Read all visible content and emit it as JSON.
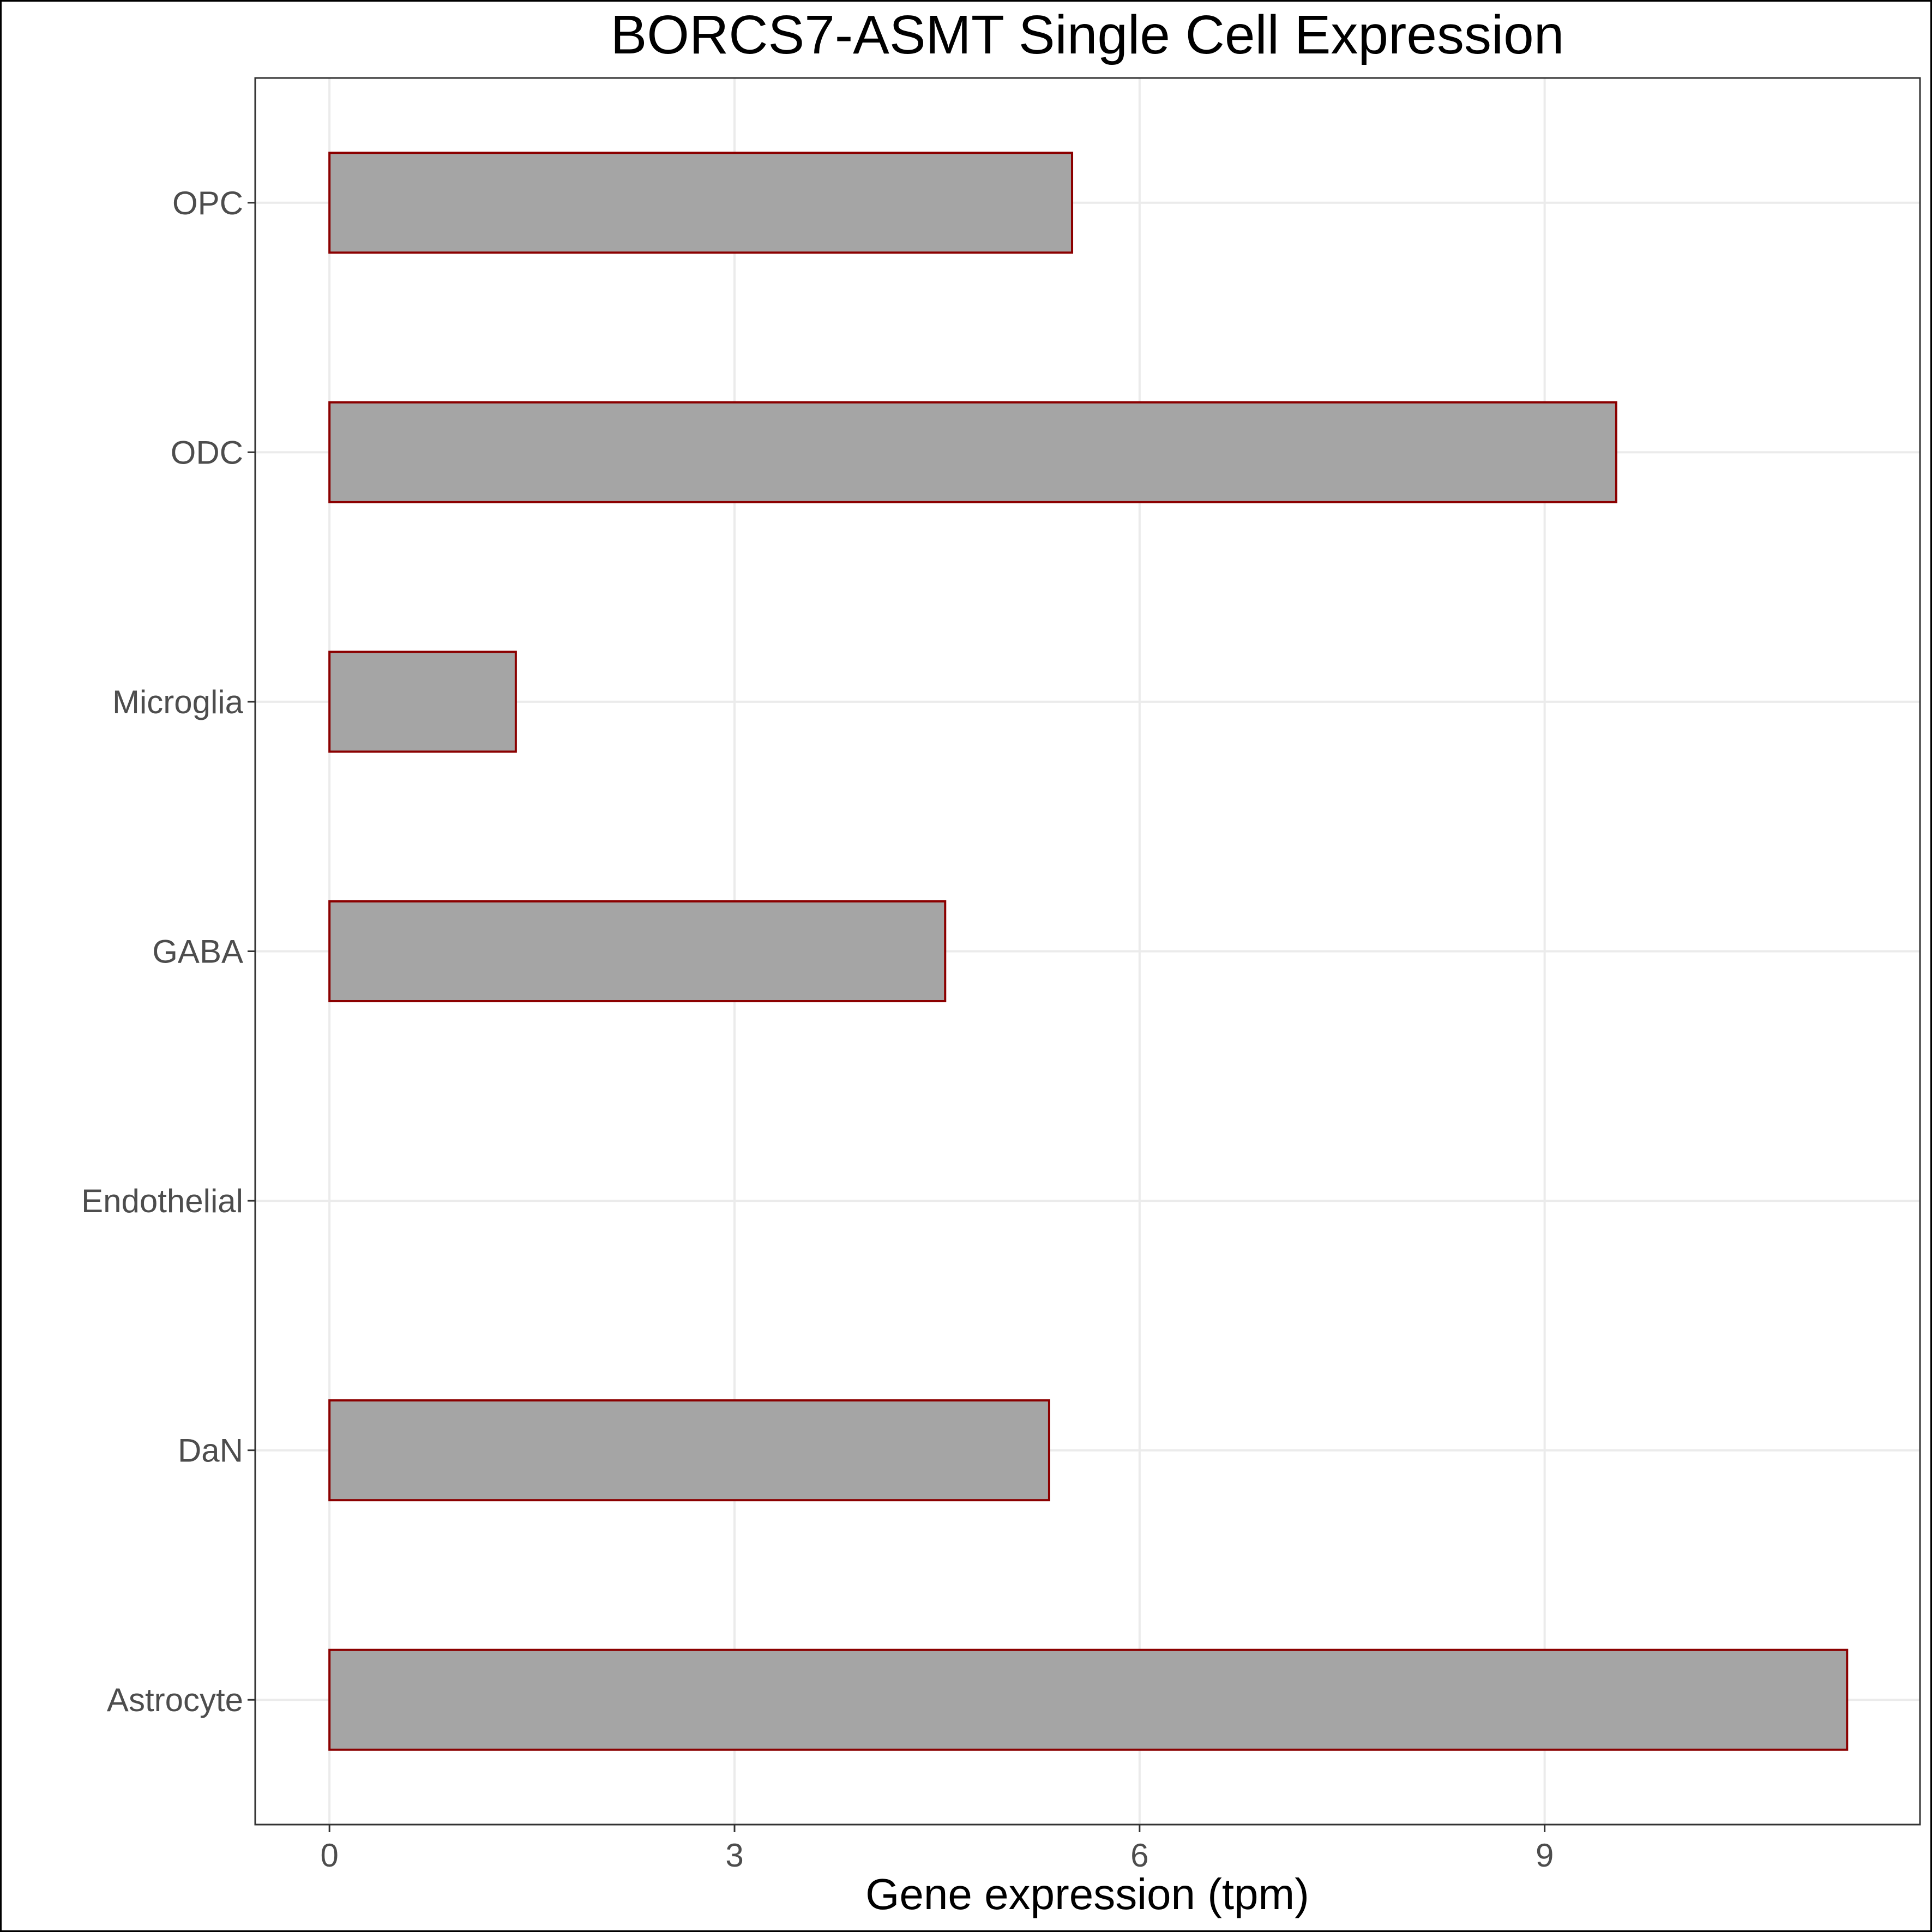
{
  "chart_data": {
    "type": "bar",
    "orientation": "horizontal",
    "title": "BORCS7-ASMT Single Cell Expression",
    "xlabel": "Gene expression (tpm)",
    "ylabel": "",
    "categories": [
      "OPC",
      "ODC",
      "Microglia",
      "GABA",
      "Endothelial",
      "DaN",
      "Astrocyte"
    ],
    "values": [
      5.5,
      9.53,
      1.38,
      4.56,
      0.0,
      5.33,
      11.24
    ],
    "xlim": [
      -0.55,
      11.78
    ],
    "xticks": [
      0,
      3,
      6,
      9
    ],
    "grid": true,
    "legend": "none",
    "colors": {
      "bar_fill": "#a5a5a5",
      "bar_stroke": "#8b0000",
      "grid": "#ebebeb",
      "panel_border": "#333333"
    }
  }
}
